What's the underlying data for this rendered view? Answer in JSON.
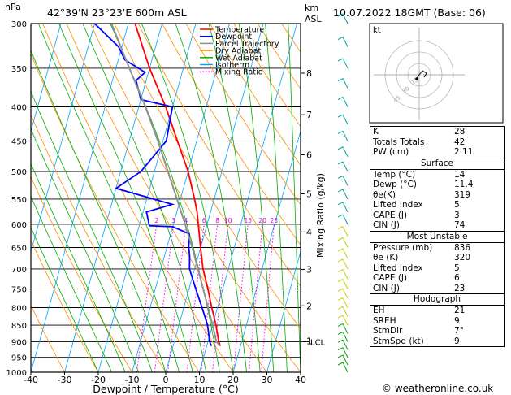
{
  "header": {
    "hpa_label": "hPa",
    "location": "42°39'N  23°23'E  600m  ASL",
    "km_label": "km",
    "asl_label": "ASL",
    "datetime": "10.07.2022  18GMT  (Base: 06)"
  },
  "legend": {
    "items": [
      {
        "label": "Temperature",
        "color": "#ff0000",
        "style": "solid"
      },
      {
        "label": "Dewpoint",
        "color": "#0000ff",
        "style": "solid"
      },
      {
        "label": "Parcel Trajectory",
        "color": "#909090",
        "style": "solid"
      },
      {
        "label": "Dry Adiabat",
        "color": "#ff8c00",
        "style": "solid"
      },
      {
        "label": "Wet Adiabat",
        "color": "#00aa00",
        "style": "solid"
      },
      {
        "label": "Isotherm",
        "color": "#00a0ff",
        "style": "solid"
      },
      {
        "label": "Mixing Ratio",
        "color": "#ff00ff",
        "style": "dotted"
      }
    ]
  },
  "chart_data": {
    "type": "line",
    "skew": "skew-T log-p",
    "xlabel": "Dewpoint / Temperature (°C)",
    "ylabel": "hPa",
    "right_label": "Mixing Ratio (g/kg)",
    "x_ticks": [
      -40,
      -30,
      -20,
      -10,
      0,
      10,
      20,
      30,
      40
    ],
    "xlim": [
      -40,
      40
    ],
    "pressure_levels": [
      300,
      350,
      400,
      450,
      500,
      550,
      600,
      650,
      700,
      750,
      800,
      850,
      900,
      950,
      1000
    ],
    "ylim": [
      1000,
      300
    ],
    "km_ticks": [
      {
        "label": "8",
        "p": 356
      },
      {
        "label": "7",
        "p": 411
      },
      {
        "label": "6",
        "p": 472
      },
      {
        "label": "5",
        "p": 540
      },
      {
        "label": "4",
        "p": 616
      },
      {
        "label": "3",
        "p": 701
      },
      {
        "label": "2",
        "p": 795
      },
      {
        "label": "1",
        "p": 898
      }
    ],
    "lcl_label": "LCL",
    "lcl_p": 900,
    "mixing_ratio_labels": [
      "2",
      "3",
      "4",
      "6",
      "8",
      "10",
      "15",
      "20",
      "25"
    ],
    "mixing_ratio_values": [
      2,
      3,
      4,
      6,
      8,
      10,
      15,
      20,
      25
    ],
    "series": [
      {
        "name": "Temperature",
        "color": "#ff0000",
        "points": [
          [
            913,
            14
          ],
          [
            900,
            13.2
          ],
          [
            850,
            11
          ],
          [
            800,
            8.3
          ],
          [
            750,
            5.6
          ],
          [
            700,
            2.5
          ],
          [
            650,
            0
          ],
          [
            600,
            -2.6
          ],
          [
            575,
            -4
          ],
          [
            550,
            -5.8
          ],
          [
            500,
            -10
          ],
          [
            450,
            -15.7
          ],
          [
            400,
            -22
          ],
          [
            350,
            -30
          ],
          [
            300,
            -38
          ]
        ]
      },
      {
        "name": "Dewpoint",
        "color": "#0000ff",
        "points": [
          [
            913,
            11.4
          ],
          [
            900,
            10.5
          ],
          [
            850,
            8.5
          ],
          [
            800,
            5.4
          ],
          [
            750,
            2
          ],
          [
            700,
            -1.5
          ],
          [
            670,
            -2.5
          ],
          [
            650,
            -3.5
          ],
          [
            620,
            -4.5
          ],
          [
            605,
            -10
          ],
          [
            603,
            -17
          ],
          [
            575,
            -19
          ],
          [
            560,
            -12
          ],
          [
            530,
            -30
          ],
          [
            500,
            -24
          ],
          [
            450,
            -19
          ],
          [
            400,
            -20
          ],
          [
            390,
            -30
          ],
          [
            365,
            -33
          ],
          [
            355,
            -31
          ],
          [
            340,
            -38
          ],
          [
            325,
            -41
          ],
          [
            300,
            -50
          ]
        ]
      },
      {
        "name": "Parcel Trajectory",
        "color": "#909090",
        "points": [
          [
            913,
            14
          ],
          [
            900,
            12.5
          ],
          [
            850,
            10
          ],
          [
            800,
            7.2
          ],
          [
            750,
            4.2
          ],
          [
            700,
            1
          ],
          [
            650,
            -2.5
          ],
          [
            600,
            -6.5
          ],
          [
            550,
            -11
          ],
          [
            500,
            -16
          ],
          [
            450,
            -21.5
          ],
          [
            400,
            -28
          ],
          [
            350,
            -36
          ],
          [
            300,
            -45
          ]
        ]
      }
    ]
  },
  "hodograph": {
    "label": "kt",
    "ring_labels": [
      "15",
      "30",
      "45"
    ]
  },
  "indices": {
    "rows": [
      {
        "label": "K",
        "value": "28"
      },
      {
        "label": "Totals Totals",
        "value": "42"
      },
      {
        "label": "PW (cm)",
        "value": "2.11"
      }
    ]
  },
  "surface": {
    "title": "Surface",
    "rows": [
      {
        "label": "Temp (°C)",
        "value": "14"
      },
      {
        "label": "Dewp (°C)",
        "value": "11.4"
      },
      {
        "label": "θe(K)",
        "value": "319"
      },
      {
        "label": "Lifted Index",
        "value": "5"
      },
      {
        "label": "CAPE (J)",
        "value": "3"
      },
      {
        "label": "CIN (J)",
        "value": "74"
      }
    ]
  },
  "most_unstable": {
    "title": "Most Unstable",
    "rows": [
      {
        "label": "Pressure (mb)",
        "value": "836"
      },
      {
        "label": "θe (K)",
        "value": "320"
      },
      {
        "label": "Lifted Index",
        "value": "5"
      },
      {
        "label": "CAPE (J)",
        "value": "6"
      },
      {
        "label": "CIN (J)",
        "value": "23"
      }
    ]
  },
  "hodograph_params": {
    "title": "Hodograph",
    "rows": [
      {
        "label": "EH",
        "value": "21"
      },
      {
        "label": "SREH",
        "value": "9"
      },
      {
        "label": "StmDir",
        "value": "7°"
      },
      {
        "label": "StmSpd (kt)",
        "value": "9"
      }
    ]
  },
  "footer": {
    "copyright": "© weatheronline.co.uk"
  }
}
